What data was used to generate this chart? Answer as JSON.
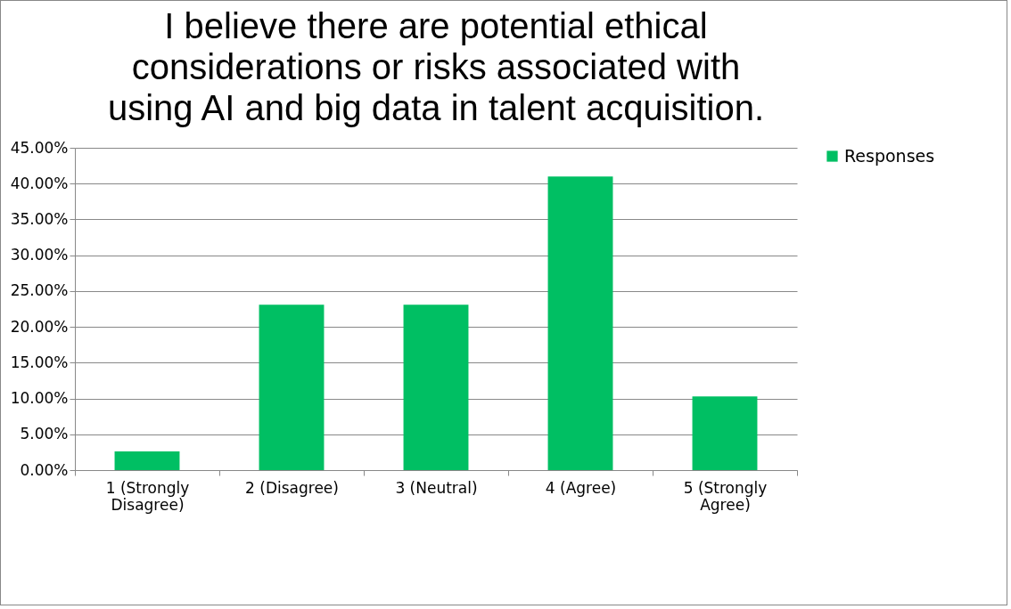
{
  "chart_data": {
    "type": "bar",
    "title": "I believe there are potential ethical considerations or risks associated with using AI and big data in talent acquisition.",
    "categories": [
      "1 (Strongly Disagree)",
      "2 (Disagree)",
      "3 (Neutral)",
      "4 (Agree)",
      "5 (Strongly Agree)"
    ],
    "series": [
      {
        "name": "Responses",
        "color": "#00bf63",
        "values": [
          2.6,
          23.1,
          23.1,
          41.0,
          10.3
        ]
      }
    ],
    "ylim": [
      0,
      45
    ],
    "yticks": [
      {
        "value": 0,
        "label": "0.00%"
      },
      {
        "value": 5,
        "label": "5.00%"
      },
      {
        "value": 10,
        "label": "10.00%"
      },
      {
        "value": 15,
        "label": "15.00%"
      },
      {
        "value": 20,
        "label": "20.00%"
      },
      {
        "value": 25,
        "label": "25.00%"
      },
      {
        "value": 30,
        "label": "30.00%"
      },
      {
        "value": 35,
        "label": "35.00%"
      },
      {
        "value": 40,
        "label": "40.00%"
      },
      {
        "value": 45,
        "label": "45.00%"
      }
    ],
    "grid": "y",
    "legend": "right"
  }
}
